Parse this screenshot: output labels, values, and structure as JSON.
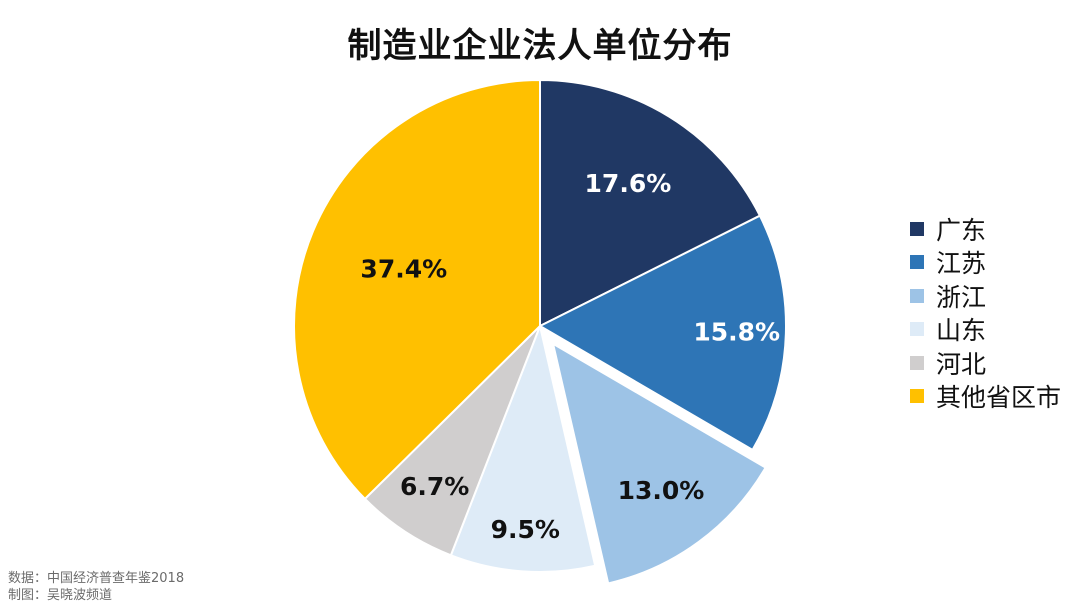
{
  "chart_data": {
    "type": "pie",
    "title": "制造业企业法人单位分布",
    "categories": [
      "广东",
      "江苏",
      "浙江",
      "山东",
      "河北",
      "其他省区市"
    ],
    "values": [
      17.6,
      15.8,
      13.0,
      9.5,
      6.7,
      37.4
    ],
    "value_labels": [
      "17.6%",
      "15.8%",
      "13.0%",
      "9.5%",
      "6.7%",
      "37.4%"
    ],
    "unit": "%",
    "colors": [
      "#203864",
      "#2E75B6",
      "#9DC3E6",
      "#DEEBF7",
      "#D0CECE",
      "#FFC000"
    ],
    "label_colors": [
      "#ffffff",
      "#ffffff",
      "#111111",
      "#111111",
      "#111111",
      "#111111"
    ],
    "exploded": "浙江",
    "start": "12 o'clock",
    "direction": "clockwise",
    "legend_position": "right"
  },
  "source": {
    "data_source": "数据：中国经济普查年鉴2018",
    "made_by": "制图：吴晓波频道"
  }
}
